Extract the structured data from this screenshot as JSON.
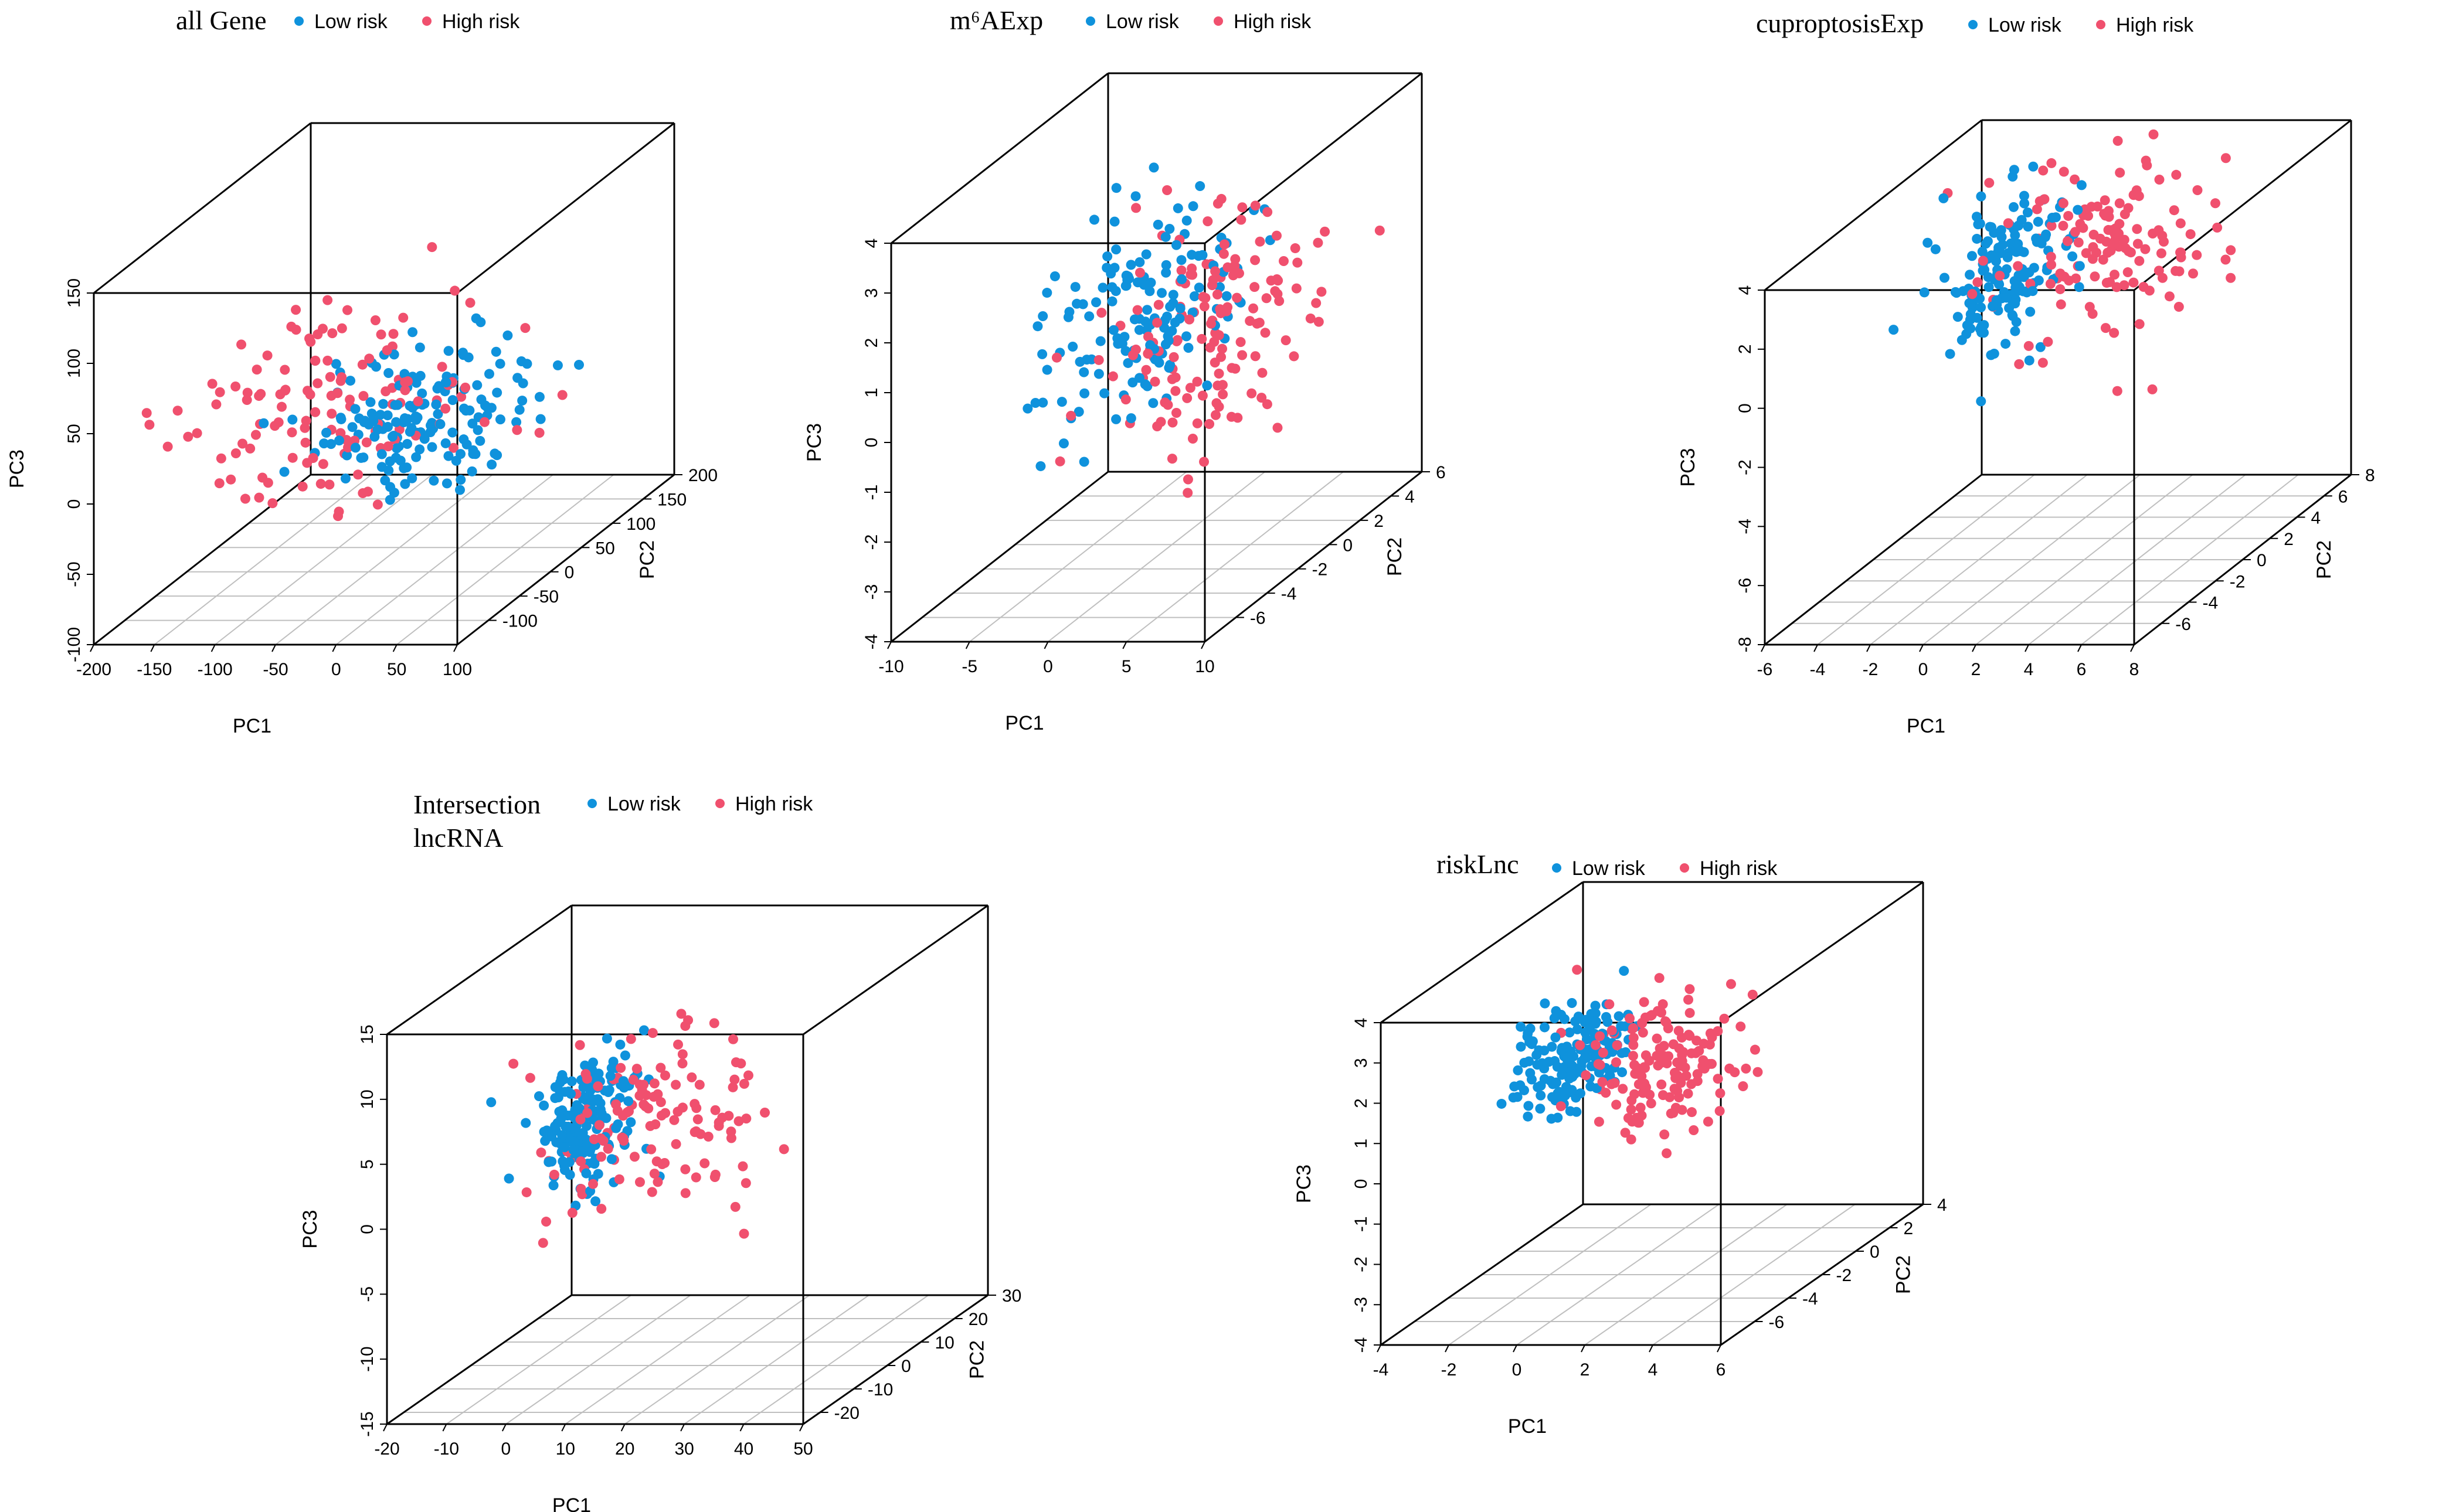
{
  "colors": {
    "low": "#0f92dc",
    "high": "#f0506e",
    "box": "#000000",
    "grid": "#bfbfbf"
  },
  "chart_data": [
    {
      "type": "scatter",
      "title": "all Gene",
      "legend": [
        "Low risk",
        "High risk"
      ],
      "xlabel": "PC1",
      "ylabel": "PC2",
      "zlabel": "PC3",
      "xlim": [
        -200,
        100
      ],
      "ylim": [
        -150,
        200
      ],
      "zlim": [
        -100,
        150
      ],
      "xticks": [
        "-200",
        "-150",
        "-100",
        "-50",
        "0",
        "50",
        "100"
      ],
      "yticks": [
        "-100",
        "-50",
        "0",
        "50",
        "100",
        "150",
        "200"
      ],
      "zticks": [
        "-100",
        "-50",
        "0",
        "50",
        "100",
        "150"
      ],
      "xtickvals": [
        -200,
        -150,
        -100,
        -50,
        0,
        50,
        100
      ],
      "ytickvals": [
        -100,
        -50,
        0,
        50,
        100,
        150,
        200
      ],
      "ztickvals": [
        -100,
        -50,
        0,
        50,
        100,
        150
      ],
      "series": [
        {
          "name": "Low risk",
          "n": 170,
          "cx": 0,
          "cy": -10,
          "cz": 10,
          "sx": 40,
          "sy": 40,
          "sz": 22,
          "seed": 11
        },
        {
          "name": "High risk",
          "n": 130,
          "cx": -70,
          "cy": -10,
          "cz": 20,
          "sx": 60,
          "sy": 50,
          "sz": 30,
          "seed": 12
        }
      ]
    },
    {
      "type": "scatter",
      "title": "m⁶AExp",
      "legend": [
        "Low risk",
        "High risk"
      ],
      "xlabel": "PC1",
      "ylabel": "PC2",
      "zlabel": "PC3",
      "xlim": [
        -10,
        10
      ],
      "ylim": [
        -8,
        6
      ],
      "zlim": [
        -4,
        4
      ],
      "xticks": [
        "-10",
        "-5",
        "0",
        "5",
        "10"
      ],
      "yticks": [
        "-6",
        "-4",
        "-2",
        "0",
        "2",
        "4",
        "6"
      ],
      "zticks": [
        "-4",
        "-3",
        "-2",
        "-1",
        "0",
        "1",
        "2",
        "3",
        "4"
      ],
      "xtickvals": [
        -10,
        -5,
        0,
        5,
        10
      ],
      "ytickvals": [
        -6,
        -4,
        -2,
        0,
        2,
        4,
        6
      ],
      "ztickvals": [
        -4,
        -3,
        -2,
        -1,
        0,
        1,
        2,
        3,
        4
      ],
      "series": [
        {
          "name": "Low risk",
          "n": 150,
          "cx": -2,
          "cy": 0,
          "cz": 0.7,
          "sx": 2.6,
          "sy": 2.4,
          "sz": 1.1,
          "seed": 21
        },
        {
          "name": "High risk",
          "n": 150,
          "cx": 2,
          "cy": 0,
          "cz": 0.5,
          "sx": 2.6,
          "sy": 2.4,
          "sz": 1.1,
          "seed": 22
        }
      ]
    },
    {
      "type": "scatter",
      "title": "cuproptosisExp",
      "legend": [
        "Low risk",
        "High risk"
      ],
      "xlabel": "PC1",
      "ylabel": "PC2",
      "zlabel": "PC3",
      "xlim": [
        -6,
        8
      ],
      "ylim": [
        -8,
        8
      ],
      "zlim": [
        -8,
        4
      ],
      "xticks": [
        "-6",
        "-4",
        "-2",
        "0",
        "2",
        "4",
        "6",
        "8"
      ],
      "yticks": [
        "-6",
        "-4",
        "-2",
        "0",
        "2",
        "4",
        "6",
        "8"
      ],
      "zticks": [
        "-8",
        "-6",
        "-4",
        "-2",
        "0",
        "2",
        "4"
      ],
      "xtickvals": [
        -6,
        -4,
        -2,
        0,
        2,
        4,
        6,
        8
      ],
      "ytickvals": [
        -6,
        -4,
        -2,
        0,
        2,
        4,
        6,
        8
      ],
      "ztickvals": [
        -8,
        -6,
        -4,
        -2,
        0,
        2,
        4
      ],
      "series": [
        {
          "name": "Low risk",
          "n": 160,
          "cx": -2,
          "cy": 2,
          "cz": 1.2,
          "sx": 1.0,
          "sy": 1.6,
          "sz": 1.3,
          "seed": 31
        },
        {
          "name": "High risk",
          "n": 140,
          "cx": 1.5,
          "cy": 3,
          "cz": 1.5,
          "sx": 1.8,
          "sy": 2.0,
          "sz": 1.5,
          "seed": 32
        }
      ]
    },
    {
      "type": "scatter",
      "title": "Intersection",
      "title2": "lncRNA",
      "legend": [
        "Low risk",
        "High risk"
      ],
      "xlabel": "PC1",
      "ylabel": "PC2",
      "zlabel": "PC3",
      "xlim": [
        -20,
        50
      ],
      "ylim": [
        -25,
        30
      ],
      "zlim": [
        -15,
        15
      ],
      "xticks": [
        "-20",
        "-10",
        "0",
        "10",
        "20",
        "30",
        "40",
        "50"
      ],
      "yticks": [
        "-20",
        "-10",
        "0",
        "10",
        "20",
        "30"
      ],
      "zticks": [
        "-15",
        "-10",
        "-5",
        "0",
        "5",
        "10",
        "15"
      ],
      "xtickvals": [
        -20,
        -10,
        0,
        10,
        20,
        30,
        40,
        50
      ],
      "ytickvals": [
        -20,
        -10,
        0,
        10,
        20,
        30
      ],
      "ztickvals": [
        -15,
        -10,
        -5,
        0,
        5,
        10,
        15
      ],
      "series": [
        {
          "name": "Low risk",
          "n": 170,
          "cx": -3,
          "cy": 5,
          "cz": 3,
          "sx": 2.5,
          "sy": 6,
          "sz": 2.6,
          "seed": 41
        },
        {
          "name": "High risk",
          "n": 130,
          "cx": 8,
          "cy": 5,
          "cz": 3,
          "sx": 8,
          "sy": 8,
          "sz": 3.5,
          "seed": 42
        }
      ]
    },
    {
      "type": "scatter",
      "title": "riskLnc",
      "legend": [
        "Low risk",
        "High risk"
      ],
      "xlabel": "PC1",
      "ylabel": "PC2",
      "zlabel": "PC3",
      "xlim": [
        -4,
        6
      ],
      "ylim": [
        -8,
        4
      ],
      "zlim": [
        -4,
        4
      ],
      "xticks": [
        "-4",
        "-2",
        "0",
        "2",
        "4",
        "6"
      ],
      "yticks": [
        "-6",
        "-4",
        "-2",
        "0",
        "2",
        "4"
      ],
      "zticks": [
        "-4",
        "-3",
        "-2",
        "-1",
        "0",
        "1",
        "2",
        "3",
        "4"
      ],
      "xtickvals": [
        -4,
        -2,
        0,
        2,
        4,
        6
      ],
      "ytickvals": [
        -6,
        -4,
        -2,
        0,
        2,
        4
      ],
      "ztickvals": [
        -4,
        -3,
        -2,
        -1,
        0,
        1,
        2,
        3,
        4
      ],
      "series": [
        {
          "name": "Low risk",
          "n": 160,
          "cx": -1.5,
          "cy": -2,
          "cz": 1.3,
          "sx": 0.6,
          "sy": 1.2,
          "sz": 0.6,
          "seed": 51
        },
        {
          "name": "High risk",
          "n": 150,
          "cx": 1.5,
          "cy": -2,
          "cz": 1.3,
          "sx": 1.0,
          "sy": 1.4,
          "sz": 0.8,
          "seed": 52
        }
      ]
    }
  ]
}
